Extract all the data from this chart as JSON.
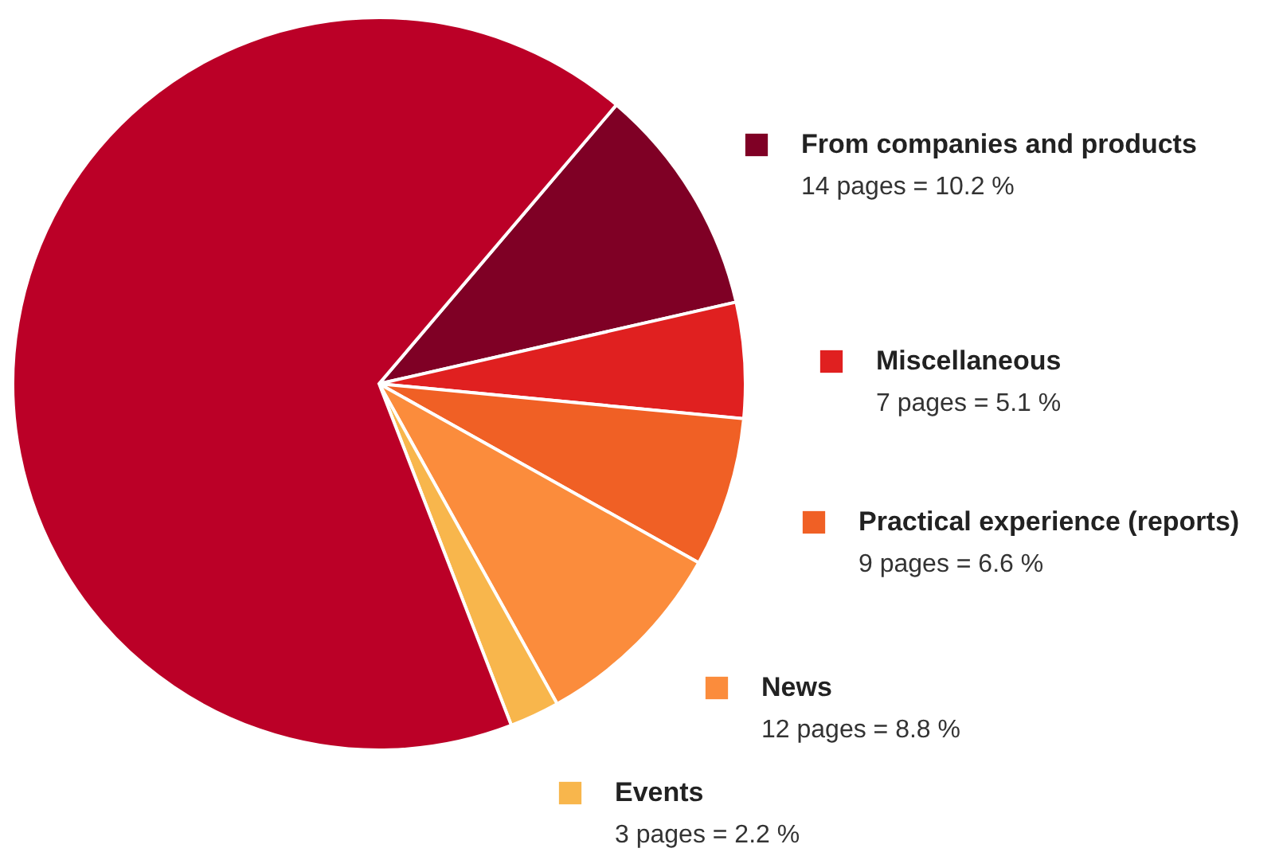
{
  "chart_data": {
    "type": "pie",
    "categories": [
      "From companies and products",
      "Miscellaneous",
      "Practical experience (reports)",
      "News",
      "Events",
      null
    ],
    "values": [
      10.2,
      5.1,
      6.6,
      8.8,
      2.2,
      67.1
    ],
    "colors": [
      "#7f0025",
      "#e02020",
      "#f06025",
      "#fb8c3c",
      "#f8b64c",
      "#bb0027"
    ],
    "value_labels": [
      "14 pages = 10.2 %",
      "7 pages = 5.1 %",
      "9 pages = 6.6 %",
      "12 pages = 8.8 %",
      "3 pages = 2.2 %",
      null
    ],
    "legend": "right"
  }
}
